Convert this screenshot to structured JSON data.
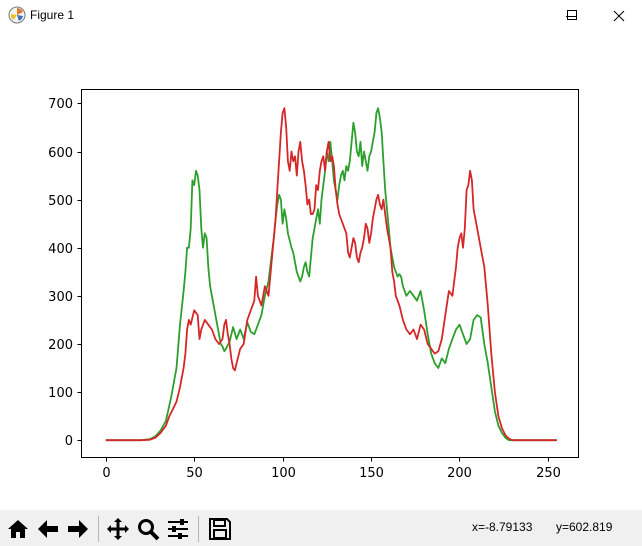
{
  "window": {
    "title": "Figure 1",
    "buttons": [
      "minimize",
      "maximize",
      "close"
    ]
  },
  "toolbar": {
    "buttons": [
      "home-icon",
      "back-icon",
      "forward-icon",
      "pan-icon",
      "zoom-icon",
      "configure-subplots-icon",
      "save-icon"
    ],
    "coord_x": "x=-8.79133",
    "coord_y": "y=602.819"
  },
  "colors": {
    "series_green": "#2ca02c",
    "series_red": "#d62728"
  },
  "chart_data": {
    "type": "line",
    "title": "",
    "xlabel": "",
    "ylabel": "",
    "xlim": [
      -14,
      267
    ],
    "ylim": [
      -35,
      730
    ],
    "xticks": [
      0,
      50,
      100,
      150,
      200,
      250
    ],
    "yticks": [
      0,
      100,
      200,
      300,
      400,
      500,
      600,
      700
    ],
    "grid": false,
    "legend": "none",
    "series": [
      {
        "color": "#2ca02c",
        "points": [
          [
            0,
            0
          ],
          [
            10,
            0
          ],
          [
            20,
            0
          ],
          [
            25,
            2
          ],
          [
            28,
            8
          ],
          [
            31,
            20
          ],
          [
            34,
            40
          ],
          [
            37,
            90
          ],
          [
            40,
            150
          ],
          [
            42,
            240
          ],
          [
            44,
            310
          ],
          [
            45,
            350
          ],
          [
            46,
            400
          ],
          [
            47,
            400
          ],
          [
            48,
            440
          ],
          [
            49,
            540
          ],
          [
            50,
            530
          ],
          [
            51,
            560
          ],
          [
            52,
            550
          ],
          [
            53,
            520
          ],
          [
            54,
            440
          ],
          [
            55,
            400
          ],
          [
            56,
            430
          ],
          [
            57,
            420
          ],
          [
            58,
            360
          ],
          [
            59,
            320
          ],
          [
            60,
            300
          ],
          [
            61,
            280
          ],
          [
            62,
            260
          ],
          [
            63,
            240
          ],
          [
            64,
            220
          ],
          [
            65,
            200
          ],
          [
            66,
            195
          ],
          [
            67,
            185
          ],
          [
            68,
            190
          ],
          [
            70,
            205
          ],
          [
            72,
            235
          ],
          [
            74,
            210
          ],
          [
            76,
            230
          ],
          [
            78,
            210
          ],
          [
            80,
            245
          ],
          [
            82,
            225
          ],
          [
            84,
            220
          ],
          [
            86,
            240
          ],
          [
            88,
            260
          ],
          [
            90,
            300
          ],
          [
            92,
            330
          ],
          [
            94,
            390
          ],
          [
            95,
            420
          ],
          [
            96,
            460
          ],
          [
            97,
            490
          ],
          [
            98,
            510
          ],
          [
            99,
            500
          ],
          [
            100,
            450
          ],
          [
            101,
            480
          ],
          [
            102,
            460
          ],
          [
            103,
            430
          ],
          [
            105,
            400
          ],
          [
            106,
            390
          ],
          [
            107,
            370
          ],
          [
            108,
            350
          ],
          [
            109,
            340
          ],
          [
            110,
            330
          ],
          [
            111,
            340
          ],
          [
            112,
            360
          ],
          [
            113,
            370
          ],
          [
            114,
            350
          ],
          [
            115,
            340
          ],
          [
            116,
            380
          ],
          [
            117,
            420
          ],
          [
            118,
            440
          ],
          [
            119,
            460
          ],
          [
            120,
            480
          ],
          [
            121,
            450
          ],
          [
            122,
            500
          ],
          [
            123,
            530
          ],
          [
            124,
            560
          ],
          [
            125,
            600
          ],
          [
            126,
            580
          ],
          [
            127,
            620
          ],
          [
            128,
            580
          ],
          [
            129,
            540
          ],
          [
            130,
            520
          ],
          [
            131,
            500
          ],
          [
            132,
            530
          ],
          [
            133,
            550
          ],
          [
            134,
            560
          ],
          [
            135,
            540
          ],
          [
            136,
            570
          ],
          [
            137,
            560
          ],
          [
            138,
            580
          ],
          [
            139,
            620
          ],
          [
            140,
            660
          ],
          [
            141,
            640
          ],
          [
            142,
            600
          ],
          [
            143,
            590
          ],
          [
            144,
            620
          ],
          [
            145,
            570
          ],
          [
            146,
            600
          ],
          [
            147,
            580
          ],
          [
            148,
            560
          ],
          [
            149,
            590
          ],
          [
            150,
            600
          ],
          [
            151,
            620
          ],
          [
            152,
            640
          ],
          [
            153,
            680
          ],
          [
            154,
            690
          ],
          [
            155,
            670
          ],
          [
            156,
            640
          ],
          [
            157,
            580
          ],
          [
            158,
            520
          ],
          [
            159,
            480
          ],
          [
            160,
            440
          ],
          [
            161,
            400
          ],
          [
            162,
            380
          ],
          [
            163,
            360
          ],
          [
            164,
            350
          ],
          [
            165,
            340
          ],
          [
            166,
            345
          ],
          [
            167,
            340
          ],
          [
            168,
            320
          ],
          [
            170,
            300
          ],
          [
            172,
            310
          ],
          [
            174,
            300
          ],
          [
            176,
            290
          ],
          [
            178,
            310
          ],
          [
            180,
            270
          ],
          [
            182,
            220
          ],
          [
            184,
            180
          ],
          [
            186,
            160
          ],
          [
            188,
            150
          ],
          [
            190,
            170
          ],
          [
            192,
            160
          ],
          [
            194,
            190
          ],
          [
            196,
            210
          ],
          [
            198,
            230
          ],
          [
            200,
            240
          ],
          [
            202,
            220
          ],
          [
            204,
            200
          ],
          [
            206,
            210
          ],
          [
            208,
            250
          ],
          [
            210,
            260
          ],
          [
            212,
            255
          ],
          [
            214,
            200
          ],
          [
            216,
            160
          ],
          [
            218,
            110
          ],
          [
            220,
            60
          ],
          [
            222,
            30
          ],
          [
            224,
            15
          ],
          [
            226,
            5
          ],
          [
            228,
            0
          ],
          [
            240,
            0
          ],
          [
            255,
            0
          ]
        ]
      },
      {
        "color": "#d62728",
        "points": [
          [
            0,
            0
          ],
          [
            10,
            0
          ],
          [
            20,
            0
          ],
          [
            25,
            1
          ],
          [
            28,
            5
          ],
          [
            31,
            15
          ],
          [
            34,
            30
          ],
          [
            36,
            50
          ],
          [
            38,
            65
          ],
          [
            40,
            80
          ],
          [
            42,
            110
          ],
          [
            44,
            150
          ],
          [
            45,
            180
          ],
          [
            46,
            230
          ],
          [
            47,
            250
          ],
          [
            48,
            240
          ],
          [
            50,
            270
          ],
          [
            52,
            260
          ],
          [
            53,
            210
          ],
          [
            54,
            230
          ],
          [
            56,
            250
          ],
          [
            58,
            240
          ],
          [
            60,
            230
          ],
          [
            62,
            210
          ],
          [
            64,
            200
          ],
          [
            66,
            210
          ],
          [
            67,
            240
          ],
          [
            68,
            250
          ],
          [
            69,
            220
          ],
          [
            70,
            200
          ],
          [
            71,
            170
          ],
          [
            72,
            150
          ],
          [
            73,
            145
          ],
          [
            74,
            160
          ],
          [
            76,
            190
          ],
          [
            78,
            200
          ],
          [
            80,
            250
          ],
          [
            82,
            270
          ],
          [
            84,
            290
          ],
          [
            85,
            340
          ],
          [
            86,
            300
          ],
          [
            88,
            280
          ],
          [
            90,
            320
          ],
          [
            92,
            300
          ],
          [
            94,
            380
          ],
          [
            95,
            420
          ],
          [
            96,
            460
          ],
          [
            97,
            520
          ],
          [
            98,
            580
          ],
          [
            99,
            640
          ],
          [
            100,
            680
          ],
          [
            101,
            690
          ],
          [
            102,
            650
          ],
          [
            103,
            580
          ],
          [
            104,
            560
          ],
          [
            105,
            600
          ],
          [
            106,
            580
          ],
          [
            107,
            590
          ],
          [
            108,
            550
          ],
          [
            109,
            600
          ],
          [
            110,
            620
          ],
          [
            111,
            580
          ],
          [
            112,
            560
          ],
          [
            113,
            530
          ],
          [
            114,
            490
          ],
          [
            115,
            500
          ],
          [
            116,
            470
          ],
          [
            117,
            470
          ],
          [
            118,
            480
          ],
          [
            119,
            530
          ],
          [
            120,
            520
          ],
          [
            121,
            560
          ],
          [
            122,
            580
          ],
          [
            123,
            590
          ],
          [
            124,
            560
          ],
          [
            125,
            600
          ],
          [
            126,
            620
          ],
          [
            127,
            580
          ],
          [
            128,
            590
          ],
          [
            129,
            570
          ],
          [
            130,
            520
          ],
          [
            131,
            490
          ],
          [
            132,
            470
          ],
          [
            133,
            460
          ],
          [
            134,
            450
          ],
          [
            135,
            440
          ],
          [
            136,
            430
          ],
          [
            137,
            390
          ],
          [
            138,
            380
          ],
          [
            139,
            400
          ],
          [
            140,
            420
          ],
          [
            141,
            410
          ],
          [
            142,
            380
          ],
          [
            143,
            370
          ],
          [
            144,
            390
          ],
          [
            145,
            400
          ],
          [
            146,
            420
          ],
          [
            147,
            450
          ],
          [
            148,
            440
          ],
          [
            149,
            410
          ],
          [
            150,
            430
          ],
          [
            151,
            460
          ],
          [
            152,
            480
          ],
          [
            153,
            500
          ],
          [
            154,
            510
          ],
          [
            155,
            490
          ],
          [
            156,
            480
          ],
          [
            157,
            500
          ],
          [
            158,
            470
          ],
          [
            159,
            440
          ],
          [
            160,
            420
          ],
          [
            161,
            400
          ],
          [
            162,
            350
          ],
          [
            163,
            330
          ],
          [
            164,
            300
          ],
          [
            166,
            280
          ],
          [
            168,
            250
          ],
          [
            170,
            230
          ],
          [
            172,
            220
          ],
          [
            174,
            230
          ],
          [
            176,
            210
          ],
          [
            178,
            240
          ],
          [
            180,
            230
          ],
          [
            182,
            200
          ],
          [
            184,
            190
          ],
          [
            186,
            180
          ],
          [
            188,
            185
          ],
          [
            190,
            210
          ],
          [
            192,
            260
          ],
          [
            194,
            310
          ],
          [
            196,
            300
          ],
          [
            198,
            360
          ],
          [
            199,
            400
          ],
          [
            200,
            420
          ],
          [
            201,
            430
          ],
          [
            202,
            400
          ],
          [
            203,
            440
          ],
          [
            204,
            520
          ],
          [
            205,
            530
          ],
          [
            206,
            560
          ],
          [
            207,
            540
          ],
          [
            208,
            480
          ],
          [
            209,
            460
          ],
          [
            210,
            440
          ],
          [
            212,
            400
          ],
          [
            214,
            360
          ],
          [
            216,
            280
          ],
          [
            218,
            180
          ],
          [
            220,
            100
          ],
          [
            222,
            50
          ],
          [
            224,
            25
          ],
          [
            226,
            10
          ],
          [
            228,
            3
          ],
          [
            230,
            0
          ],
          [
            240,
            0
          ],
          [
            255,
            0
          ]
        ]
      }
    ]
  }
}
